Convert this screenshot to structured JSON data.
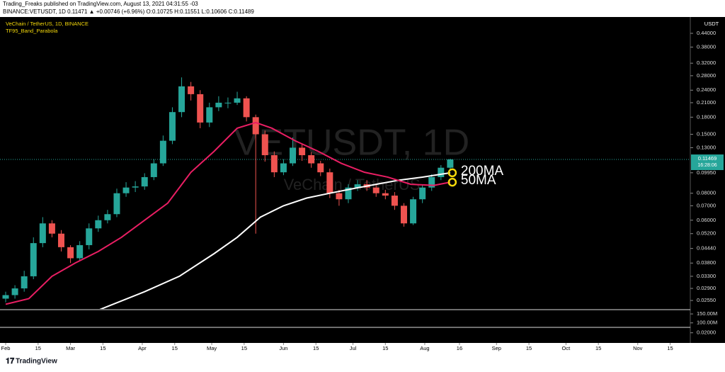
{
  "header": {
    "publisher": "Trading_Freaks published on TradingView.com, August 13, 2021 04:31:55 -03",
    "quote": "BINANCE:VETUSDT, 1D  0.11471 ▲ +0.00746 (+6.96%) O:0.10725 H:0.11551 L:0.10606 C:0.11489"
  },
  "footer": {
    "brand": "TradingView"
  },
  "chart_data": {
    "type": "candlestick",
    "title": "VeChain / TetherUS, 1D, BINANCE",
    "indicator": "TF95_Band_Parabola",
    "watermark": "VETUSDT, 1D",
    "watermark_sub": "VeChain / TetherUS",
    "currency": "USDT",
    "log_scale": true,
    "up_color": "#26a69a",
    "down_color": "#ef5350",
    "x": [
      0,
      4,
      8,
      12,
      16,
      20,
      24,
      28,
      32,
      36,
      40,
      44,
      48,
      52,
      56,
      60,
      64,
      68,
      72,
      76,
      80,
      84,
      88,
      92,
      96,
      100,
      104,
      108,
      112,
      116,
      120,
      124,
      128,
      132,
      136,
      140,
      144,
      148,
      152,
      156,
      160,
      164,
      168,
      172,
      176,
      180,
      184,
      188,
      192
    ],
    "open": [
      0.026,
      0.027,
      0.029,
      0.033,
      0.047,
      0.058,
      0.052,
      0.045,
      0.04,
      0.046,
      0.055,
      0.06,
      0.064,
      0.08,
      0.085,
      0.086,
      0.095,
      0.11,
      0.14,
      0.19,
      0.25,
      0.23,
      0.17,
      0.2,
      0.21,
      0.21,
      0.22,
      0.18,
      0.15,
      0.12,
      0.1,
      0.11,
      0.13,
      0.12,
      0.11,
      0.1,
      0.08,
      0.075,
      0.085,
      0.088,
      0.085,
      0.08,
      0.078,
      0.07,
      0.058,
      0.075,
      0.085,
      0.095,
      0.105
    ],
    "high": [
      0.028,
      0.03,
      0.035,
      0.05,
      0.062,
      0.06,
      0.054,
      0.046,
      0.048,
      0.058,
      0.063,
      0.067,
      0.084,
      0.09,
      0.091,
      0.099,
      0.115,
      0.148,
      0.2,
      0.275,
      0.262,
      0.24,
      0.21,
      0.225,
      0.222,
      0.236,
      0.225,
      0.185,
      0.156,
      0.125,
      0.115,
      0.145,
      0.135,
      0.124,
      0.113,
      0.104,
      0.083,
      0.088,
      0.092,
      0.092,
      0.088,
      0.083,
      0.081,
      0.072,
      0.077,
      0.088,
      0.098,
      0.108,
      0.1155
    ],
    "low": [
      0.025,
      0.026,
      0.028,
      0.032,
      0.045,
      0.05,
      0.043,
      0.038,
      0.039,
      0.044,
      0.053,
      0.058,
      0.062,
      0.077,
      0.081,
      0.083,
      0.092,
      0.107,
      0.135,
      0.18,
      0.215,
      0.16,
      0.162,
      0.192,
      0.198,
      0.205,
      0.172,
      0.052,
      0.112,
      0.095,
      0.097,
      0.107,
      0.113,
      0.105,
      0.096,
      0.076,
      0.07,
      0.072,
      0.082,
      0.082,
      0.077,
      0.075,
      0.067,
      0.056,
      0.057,
      0.072,
      0.082,
      0.092,
      0.1025
    ],
    "close": [
      0.027,
      0.029,
      0.033,
      0.047,
      0.058,
      0.052,
      0.045,
      0.04,
      0.046,
      0.055,
      0.06,
      0.064,
      0.08,
      0.085,
      0.086,
      0.095,
      0.11,
      0.14,
      0.19,
      0.25,
      0.23,
      0.17,
      0.2,
      0.21,
      0.21,
      0.22,
      0.18,
      0.15,
      0.12,
      0.1,
      0.11,
      0.13,
      0.12,
      0.11,
      0.1,
      0.08,
      0.075,
      0.085,
      0.088,
      0.085,
      0.08,
      0.078,
      0.07,
      0.058,
      0.075,
      0.085,
      0.095,
      0.105,
      0.1147
    ],
    "series": [
      {
        "name": "200MA",
        "color": "#ffffff",
        "x": [
          40,
          60,
          75,
          90,
          100,
          110,
          120,
          130,
          140,
          150,
          160,
          170,
          180,
          192
        ],
        "values": [
          0.023,
          0.028,
          0.033,
          0.042,
          0.05,
          0.062,
          0.07,
          0.076,
          0.08,
          0.084,
          0.088,
          0.092,
          0.095,
          0.0995
        ]
      },
      {
        "name": "50MA",
        "color": "#e91e63",
        "x": [
          0,
          10,
          20,
          30,
          40,
          50,
          60,
          70,
          80,
          90,
          100,
          108,
          115,
          125,
          135,
          145,
          155,
          165,
          175,
          185,
          192
        ],
        "values": [
          0.0245,
          0.026,
          0.033,
          0.038,
          0.043,
          0.05,
          0.06,
          0.072,
          0.1,
          0.125,
          0.16,
          0.17,
          0.16,
          0.14,
          0.125,
          0.11,
          0.1,
          0.095,
          0.088,
          0.087,
          0.09
        ]
      }
    ],
    "annotation_color": "#f5d90a",
    "current_price": {
      "value": 0.11469,
      "label": "0.11469"
    },
    "countdown": "16:28:06",
    "xlim": [
      -2.45,
      295.7
    ],
    "xticks": [
      {
        "value": 0,
        "label": "Feb"
      },
      {
        "value": 14,
        "label": "15"
      },
      {
        "value": 28,
        "label": "Mar"
      },
      {
        "value": 42,
        "label": "15"
      },
      {
        "value": 59,
        "label": "Apr"
      },
      {
        "value": 73,
        "label": "15"
      },
      {
        "value": 89,
        "label": "May"
      },
      {
        "value": 103,
        "label": "15"
      },
      {
        "value": 120,
        "label": "Jun"
      },
      {
        "value": 134,
        "label": "15"
      },
      {
        "value": 150,
        "label": "Jul"
      },
      {
        "value": 164,
        "label": "15"
      },
      {
        "value": 181,
        "label": "Aug"
      },
      {
        "value": 196,
        "label": "16"
      },
      {
        "value": 212,
        "label": "Sep"
      },
      {
        "value": 226,
        "label": "15"
      },
      {
        "value": 242,
        "label": "Oct"
      },
      {
        "value": 256,
        "label": "15"
      },
      {
        "value": 273,
        "label": "Nov"
      },
      {
        "value": 287,
        "label": "15"
      }
    ],
    "ylim": [
      0.0233,
      0.508
    ],
    "yticks": [
      {
        "value": 0.44,
        "label": "0.44000"
      },
      {
        "value": 0.38,
        "label": "0.38000"
      },
      {
        "value": 0.32,
        "label": "0.32000"
      },
      {
        "value": 0.28,
        "label": "0.28000"
      },
      {
        "value": 0.24,
        "label": "0.24000"
      },
      {
        "value": 0.21,
        "label": "0.21000"
      },
      {
        "value": 0.18,
        "label": "0.18000"
      },
      {
        "value": 0.15,
        "label": "0.15000"
      },
      {
        "value": 0.13,
        "label": "0.13000"
      },
      {
        "value": 0.0995,
        "label": "0.09950"
      },
      {
        "value": 0.08,
        "label": "0.08000"
      },
      {
        "value": 0.07,
        "label": "0.07000"
      },
      {
        "value": 0.06,
        "label": "0.06000"
      },
      {
        "value": 0.052,
        "label": "0.05200"
      },
      {
        "value": 0.0444,
        "label": "0.04440"
      },
      {
        "value": 0.038,
        "label": "0.03800"
      },
      {
        "value": 0.033,
        "label": "0.03300"
      },
      {
        "value": 0.029,
        "label": "0.02900"
      },
      {
        "value": 0.0255,
        "label": "0.02550"
      }
    ],
    "volume_ylim": [
      75000000,
      170000000
    ],
    "volume_ticks": [
      {
        "value": 150000000,
        "label": "150.00M"
      },
      {
        "value": 100000000,
        "label": "100.00M"
      }
    ],
    "osc_ylim": [
      0,
      0.03
    ],
    "osc_ticks": [
      {
        "value": 0.02,
        "label": "0.02000"
      }
    ]
  }
}
